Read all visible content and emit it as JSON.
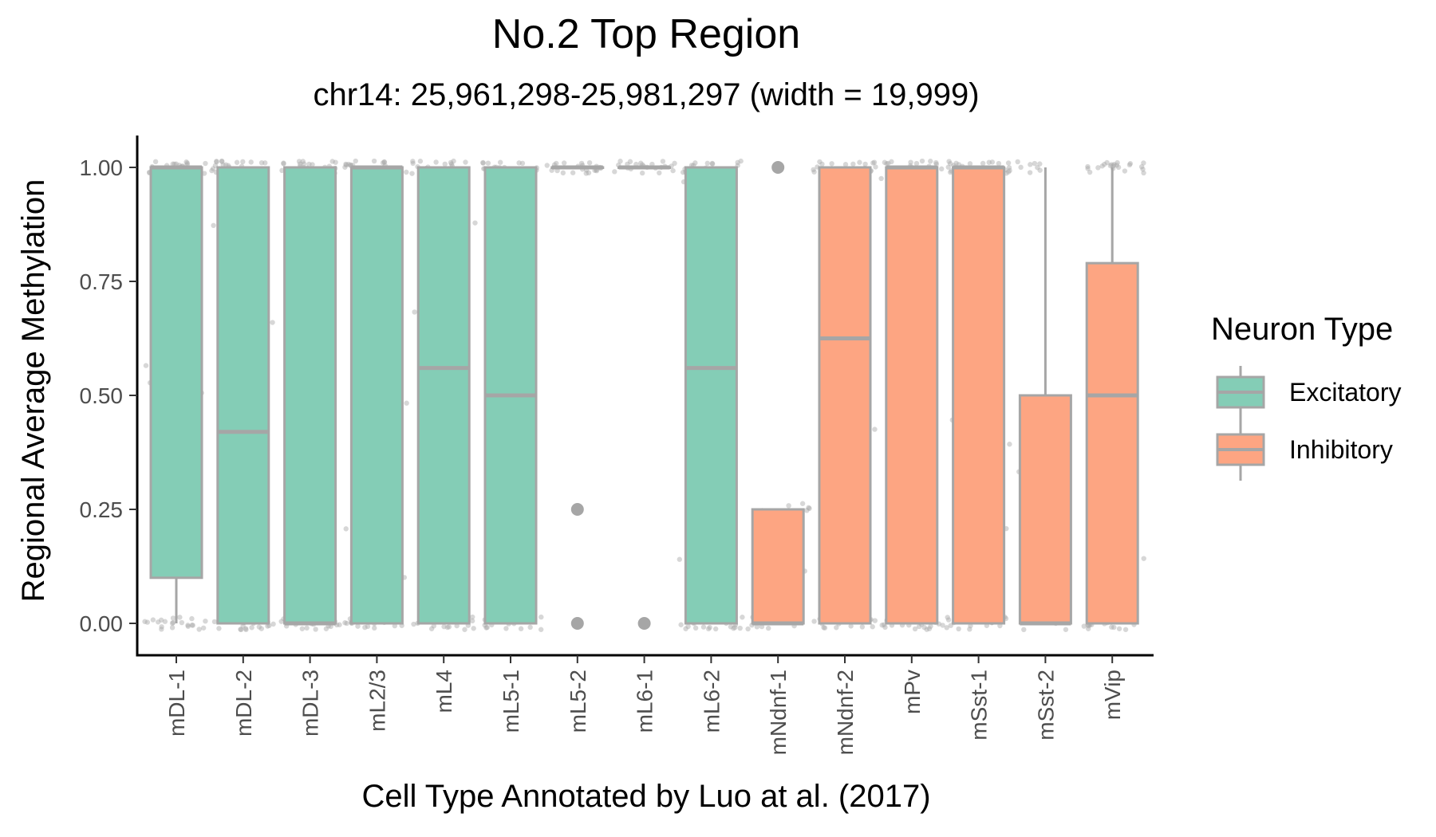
{
  "chart_data": {
    "type": "box",
    "title": "No.2 Top Region",
    "subtitle": "chr14: 25,961,298-25,981,297 (width = 19,999)",
    "xlabel": "Cell Type Annotated by Luo at al. (2017)",
    "ylabel": "Regional Average Methylation",
    "ylim": [
      -0.07,
      1.07
    ],
    "yticks": [
      "0.00",
      "0.25",
      "0.50",
      "0.75",
      "1.00"
    ],
    "ytick_values": [
      0,
      0.25,
      0.5,
      0.75,
      1.0
    ],
    "grid": false,
    "legend": {
      "title": "Neuron Type",
      "position": "right",
      "entries": [
        {
          "name": "Excitatory",
          "color": "#84cdb6"
        },
        {
          "name": "Inhibitory",
          "color": "#fda582"
        }
      ]
    },
    "box_border_color": "#a6a6a6",
    "categories": [
      "mDL-1",
      "mDL-2",
      "mDL-3",
      "mL2/3",
      "mL4",
      "mL5-1",
      "mL5-2",
      "mL6-1",
      "mL6-2",
      "mNdnf-1",
      "mNdnf-2",
      "mPv",
      "mSst-1",
      "mSst-2",
      "mVip"
    ],
    "boxes": [
      {
        "category": "mDL-1",
        "group": "Excitatory",
        "q1": 0.1,
        "median": 1.0,
        "q3": 1.0,
        "whisker_low": 0.0,
        "whisker_high": 1.0,
        "outliers": []
      },
      {
        "category": "mDL-2",
        "group": "Excitatory",
        "q1": 0.0,
        "median": 0.42,
        "q3": 1.0,
        "whisker_low": 0.0,
        "whisker_high": 1.0,
        "outliers": []
      },
      {
        "category": "mDL-3",
        "group": "Excitatory",
        "q1": 0.0,
        "median": 0.0,
        "q3": 1.0,
        "whisker_low": 0.0,
        "whisker_high": 1.0,
        "outliers": []
      },
      {
        "category": "mL2/3",
        "group": "Excitatory",
        "q1": 0.0,
        "median": 1.0,
        "q3": 1.0,
        "whisker_low": 0.0,
        "whisker_high": 1.0,
        "outliers": []
      },
      {
        "category": "mL4",
        "group": "Excitatory",
        "q1": 0.0,
        "median": 0.56,
        "q3": 1.0,
        "whisker_low": 0.0,
        "whisker_high": 1.0,
        "outliers": []
      },
      {
        "category": "mL5-1",
        "group": "Excitatory",
        "q1": 0.0,
        "median": 0.5,
        "q3": 1.0,
        "whisker_low": 0.0,
        "whisker_high": 1.0,
        "outliers": []
      },
      {
        "category": "mL5-2",
        "group": "Excitatory",
        "q1": 1.0,
        "median": 1.0,
        "q3": 1.0,
        "whisker_low": 1.0,
        "whisker_high": 1.0,
        "outliers": [
          0.25,
          0.0
        ]
      },
      {
        "category": "mL6-1",
        "group": "Excitatory",
        "q1": 1.0,
        "median": 1.0,
        "q3": 1.0,
        "whisker_low": 1.0,
        "whisker_high": 1.0,
        "outliers": [
          0.0
        ]
      },
      {
        "category": "mL6-2",
        "group": "Excitatory",
        "q1": 0.0,
        "median": 0.56,
        "q3": 1.0,
        "whisker_low": 0.0,
        "whisker_high": 1.0,
        "outliers": []
      },
      {
        "category": "mNdnf-1",
        "group": "Inhibitory",
        "q1": 0.0,
        "median": 0.0,
        "q3": 0.25,
        "whisker_low": 0.0,
        "whisker_high": 0.25,
        "outliers": [
          1.0
        ]
      },
      {
        "category": "mNdnf-2",
        "group": "Inhibitory",
        "q1": 0.0,
        "median": 0.625,
        "q3": 1.0,
        "whisker_low": 0.0,
        "whisker_high": 1.0,
        "outliers": []
      },
      {
        "category": "mPv",
        "group": "Inhibitory",
        "q1": 0.0,
        "median": 1.0,
        "q3": 1.0,
        "whisker_low": 0.0,
        "whisker_high": 1.0,
        "outliers": []
      },
      {
        "category": "mSst-1",
        "group": "Inhibitory",
        "q1": 0.0,
        "median": 1.0,
        "q3": 1.0,
        "whisker_low": 0.0,
        "whisker_high": 1.0,
        "outliers": []
      },
      {
        "category": "mSst-2",
        "group": "Inhibitory",
        "q1": 0.0,
        "median": 0.0,
        "q3": 0.5,
        "whisker_low": 0.0,
        "whisker_high": 1.0,
        "outliers": []
      },
      {
        "category": "mVip",
        "group": "Inhibitory",
        "q1": 0.0,
        "median": 0.5,
        "q3": 0.79,
        "whisker_low": 0.0,
        "whisker_high": 1.0,
        "outliers": []
      }
    ]
  }
}
